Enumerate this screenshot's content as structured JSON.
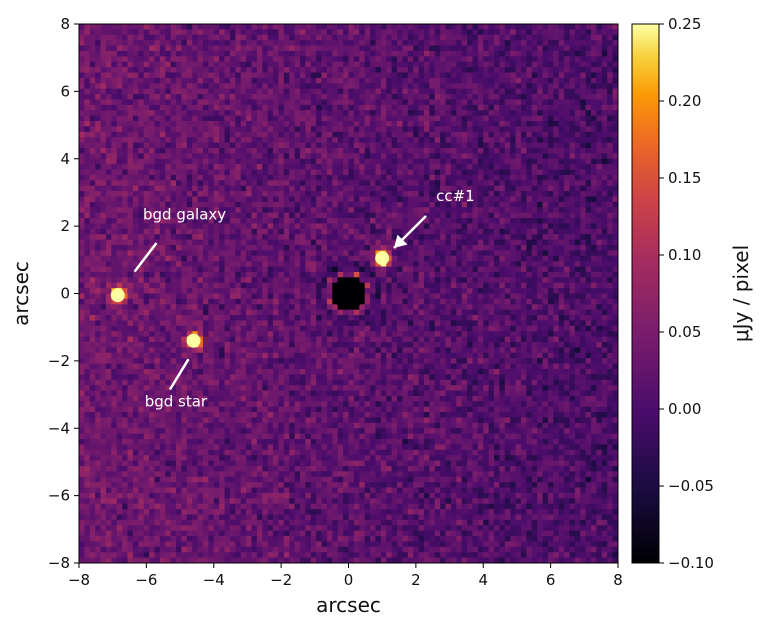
{
  "chart_data": {
    "type": "heatmap",
    "xlabel": "arcsec",
    "ylabel": "arcsec",
    "xlim": [
      -8,
      8
    ],
    "ylim": [
      -8,
      8
    ],
    "xticks": [
      -8,
      -6,
      -4,
      -2,
      0,
      2,
      4,
      6,
      8
    ],
    "yticks": [
      -8,
      -6,
      -4,
      -2,
      0,
      2,
      4,
      6,
      8
    ],
    "colormap": "inferno",
    "colorbar": {
      "label": "μJy / pixel",
      "range": [
        -0.1,
        0.25
      ],
      "ticks": [
        "−0.10",
        "−0.05",
        "0.00",
        "0.05",
        "0.10",
        "0.15",
        "0.20",
        "0.25"
      ]
    },
    "sources": [
      {
        "name": "cc#1",
        "x": 1.0,
        "y": 1.05,
        "flux": 0.25
      },
      {
        "name": "bgd galaxy",
        "x": -6.85,
        "y": -0.05,
        "flux": 0.22
      },
      {
        "name": "bgd star",
        "x": -4.6,
        "y": -1.4,
        "flux": 0.22
      }
    ],
    "annotations": [
      {
        "text": "cc#1",
        "text_pos": [
          2.6,
          2.75
        ],
        "arrow_from": [
          2.3,
          2.3
        ],
        "arrow_to": [
          1.35,
          1.35
        ],
        "arrowhead": true
      },
      {
        "text": "bgd galaxy",
        "text_pos": [
          -6.1,
          2.2
        ],
        "arrow_from": [
          -5.7,
          1.5
        ],
        "arrow_to": [
          -6.35,
          0.65
        ],
        "arrowhead": false
      },
      {
        "text": "bgd star",
        "text_pos": [
          -6.05,
          -3.35
        ],
        "arrow_from": [
          -5.3,
          -2.85
        ],
        "arrow_to": [
          -4.75,
          -1.95
        ],
        "arrowhead": false
      }
    ],
    "central_mask": {
      "x": 0,
      "y": 0,
      "note": "coronagraph residual"
    }
  }
}
